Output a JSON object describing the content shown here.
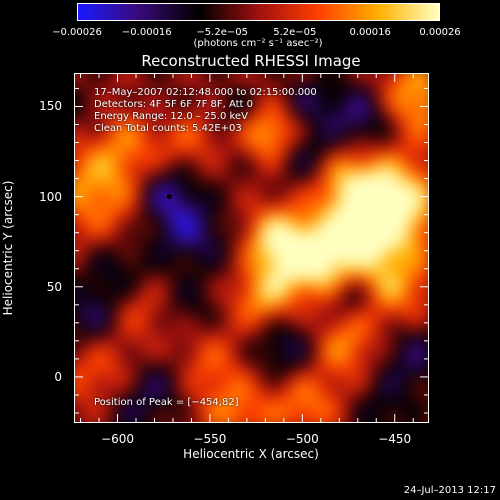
{
  "chart_data": {
    "type": "heatmap",
    "title": "Reconstructed RHESSI Image",
    "xlabel": "Heliocentric X (arcsec)",
    "ylabel": "Heliocentric Y (arcsec)",
    "xlim": [
      -623,
      -432
    ],
    "ylim": [
      -25,
      168
    ],
    "xticks": [
      "−600",
      "−550",
      "−500",
      "−450"
    ],
    "xtick_values": [
      -600,
      -550,
      -500,
      -450
    ],
    "yticks": [
      "0",
      "50",
      "100",
      "150"
    ],
    "ytick_values": [
      0,
      50,
      100,
      150
    ],
    "colorbar": {
      "ticks": [
        "−0.00026",
        "−0.00016",
        "−5.2e−05",
        "5.2e−05",
        "0.00016",
        "0.00026"
      ],
      "tick_values": [
        -0.00026,
        -0.00016,
        -5.2e-05,
        5.2e-05,
        0.00016,
        0.00026
      ],
      "range": [
        -0.00026,
        0.00026
      ],
      "unit_label": "(photons cm⁻² s⁻¹ asec⁻²)",
      "colors": [
        "#1a1aff",
        "#3b0a7a",
        "#000000",
        "#a01010",
        "#ff4000",
        "#ffb000",
        "#ffffc0"
      ]
    },
    "annotations": {
      "time_range": "17–May–2007 02:12:48.000 to 02:15:00.000",
      "detectors": "Detectors: 4F 5F 6F 7F 8F, Att 0",
      "energy": "Energy Range: 12.0 – 25.0 keV",
      "clean": "Clean     Total counts: 5.42E+03",
      "peak": "Position of Peak = [−454,82]"
    },
    "marker": {
      "x": -572,
      "y": 100
    },
    "blobs": [
      {
        "x": -610,
        "y": 140,
        "v": -0.6,
        "r": 14
      },
      {
        "x": -595,
        "y": 135,
        "v": 0.6,
        "r": 14
      },
      {
        "x": -575,
        "y": 145,
        "v": -0.4,
        "r": 12
      },
      {
        "x": -560,
        "y": 130,
        "v": 0.5,
        "r": 12
      },
      {
        "x": -605,
        "y": 105,
        "v": 0.85,
        "r": 20
      },
      {
        "x": -572,
        "y": 100,
        "v": -1.0,
        "r": 12
      },
      {
        "x": -560,
        "y": 80,
        "v": -0.8,
        "r": 12
      },
      {
        "x": -595,
        "y": 60,
        "v": -0.6,
        "r": 14
      },
      {
        "x": -610,
        "y": 35,
        "v": -0.7,
        "r": 12
      },
      {
        "x": -585,
        "y": 40,
        "v": 0.55,
        "r": 12
      },
      {
        "x": -560,
        "y": 40,
        "v": -0.5,
        "r": 12
      },
      {
        "x": -605,
        "y": 5,
        "v": 0.5,
        "r": 14
      },
      {
        "x": -575,
        "y": 0,
        "v": -0.6,
        "r": 12
      },
      {
        "x": -550,
        "y": 10,
        "v": 0.5,
        "r": 14
      },
      {
        "x": -535,
        "y": 70,
        "v": -0.3,
        "r": 14
      },
      {
        "x": -530,
        "y": 120,
        "v": -0.4,
        "r": 12
      },
      {
        "x": -535,
        "y": 145,
        "v": -0.5,
        "r": 10
      },
      {
        "x": -500,
        "y": 150,
        "v": -0.6,
        "r": 10
      },
      {
        "x": -518,
        "y": 130,
        "v": 1.3,
        "r": 12
      },
      {
        "x": -500,
        "y": 120,
        "v": -1.0,
        "r": 12
      },
      {
        "x": -470,
        "y": 140,
        "v": -1.0,
        "r": 14
      },
      {
        "x": -445,
        "y": 150,
        "v": 1.0,
        "r": 14
      },
      {
        "x": -480,
        "y": 110,
        "v": 0.9,
        "r": 14
      },
      {
        "x": -455,
        "y": 95,
        "v": 1.4,
        "r": 16
      },
      {
        "x": -470,
        "y": 80,
        "v": 1.2,
        "r": 14
      },
      {
        "x": -515,
        "y": 75,
        "v": 1.35,
        "r": 12
      },
      {
        "x": -495,
        "y": 65,
        "v": 1.4,
        "r": 12
      },
      {
        "x": -520,
        "y": 45,
        "v": 1.0,
        "r": 12
      },
      {
        "x": -455,
        "y": 50,
        "v": 0.8,
        "r": 14
      },
      {
        "x": -510,
        "y": 20,
        "v": -0.8,
        "r": 14
      },
      {
        "x": -480,
        "y": 20,
        "v": 0.8,
        "r": 12
      },
      {
        "x": -445,
        "y": 15,
        "v": -0.7,
        "r": 14
      },
      {
        "x": -500,
        "y": -10,
        "v": 0.7,
        "r": 12
      },
      {
        "x": -460,
        "y": -15,
        "v": -0.5,
        "r": 12
      },
      {
        "x": -535,
        "y": -15,
        "v": 0.6,
        "r": 12
      },
      {
        "x": -590,
        "y": -15,
        "v": -0.5,
        "r": 12
      },
      {
        "x": -475,
        "y": 45,
        "v": -0.7,
        "r": 8
      }
    ]
  },
  "footer": "24–Jul–2013 12:17"
}
